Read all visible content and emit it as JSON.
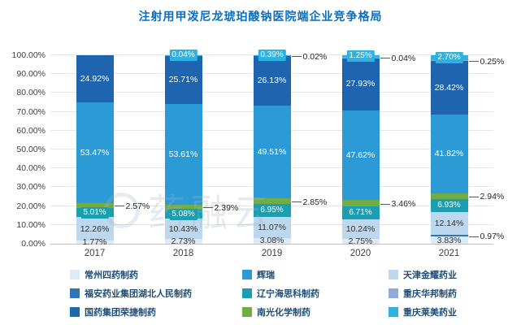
{
  "title": "注射用甲泼尼龙琥珀酸钠医院端企业竞争格局",
  "watermark": "药融云",
  "chart_data": {
    "type": "bar",
    "stacked": true,
    "unit": "%",
    "title": "注射用甲泼尼龙琥珀酸钠医院端企业竞争格局",
    "categories": [
      "2017",
      "2018",
      "2019",
      "2020",
      "2021"
    ],
    "y_axis": {
      "min": 0,
      "max": 100,
      "step": 10,
      "tick_labels": [
        "0.00%",
        "10.00%",
        "20.00%",
        "30.00%",
        "40.00%",
        "50.00%",
        "60.00%",
        "70.00%",
        "80.00%",
        "90.00%",
        "100.00%"
      ]
    },
    "grid": true,
    "legend_position": "bottom",
    "series": [
      {
        "name": "常州四药制药",
        "color": "#dcebf7",
        "label_mode": "inside-dark",
        "values": [
          1.77,
          2.73,
          3.08,
          2.75,
          3.83
        ]
      },
      {
        "name": "福安药业集团湖北人民制药",
        "color": "#2e75b6",
        "label_mode": "callout",
        "values": [
          null,
          null,
          null,
          null,
          0.97
        ]
      },
      {
        "name": "天津金耀药业",
        "color": "#bdd7ee",
        "label_mode": "inside-dark",
        "values": [
          12.26,
          10.43,
          11.07,
          10.24,
          12.14
        ]
      },
      {
        "name": "辽宁海思科制药",
        "color": "#1b9eb0",
        "label_mode": "boxed",
        "values": [
          5.01,
          5.08,
          6.95,
          6.71,
          6.93
        ]
      },
      {
        "name": "南光化学制药",
        "color": "#70ad47",
        "label_mode": "callout",
        "values": [
          2.57,
          2.39,
          2.85,
          3.46,
          2.94
        ]
      },
      {
        "name": "辉瑞",
        "color": "#2b9ad5",
        "label_mode": "inside-white",
        "values": [
          53.47,
          53.61,
          49.51,
          47.62,
          41.82
        ]
      },
      {
        "name": "国药集团荣捷制药",
        "color": "#1f64ae",
        "label_mode": "inside-white",
        "values": [
          24.92,
          25.71,
          26.13,
          27.93,
          28.42
        ]
      },
      {
        "name": "重庆华邦制药",
        "color": "#8faadc",
        "label_mode": "callout",
        "values": [
          null,
          null,
          0.02,
          0.04,
          0.25
        ]
      },
      {
        "name": "重庆莱美药业",
        "color": "#2db2e2",
        "label_mode": "boxed",
        "values": [
          null,
          0.04,
          0.39,
          1.25,
          2.7
        ]
      }
    ],
    "legend": [
      {
        "label": "常州四药制药",
        "color": "#dcebf7"
      },
      {
        "label": "辉瑞",
        "color": "#2b9ad5"
      },
      {
        "label": "天津金耀药业",
        "color": "#bdd7ee"
      },
      {
        "label": "福安药业集团湖北人民制药",
        "color": "#2e75b6"
      },
      {
        "label": "辽宁海思科制药",
        "color": "#1b9eb0"
      },
      {
        "label": "重庆华邦制药",
        "color": "#8faadc"
      },
      {
        "label": "国药集团荣捷制药",
        "color": "#1f64ae"
      },
      {
        "label": "南光化学制药",
        "color": "#70ad47"
      },
      {
        "label": "重庆莱美药业",
        "color": "#2db2e2"
      }
    ]
  }
}
